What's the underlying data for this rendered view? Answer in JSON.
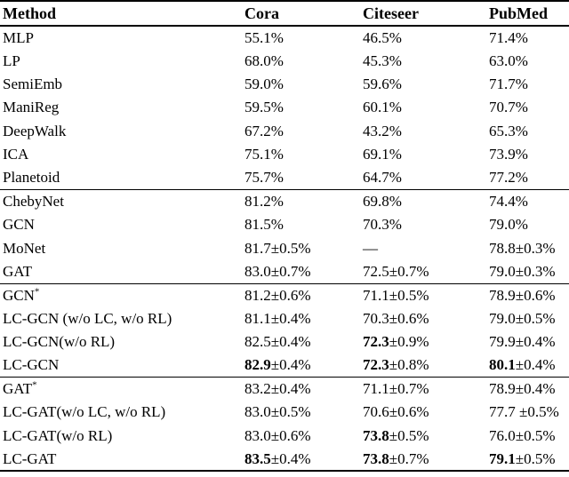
{
  "table": {
    "columns": [
      "Method",
      "Cora",
      "Citeseer",
      "PubMed"
    ],
    "sections": [
      {
        "rows": [
          {
            "method": "MLP",
            "values": [
              "55.1%",
              "46.5%",
              "71.4%"
            ]
          },
          {
            "method": "LP",
            "values": [
              "68.0%",
              "45.3%",
              "63.0%"
            ]
          },
          {
            "method": "SemiEmb",
            "values": [
              "59.0%",
              "59.6%",
              "71.7%"
            ]
          },
          {
            "method": "ManiReg",
            "values": [
              "59.5%",
              "60.1%",
              "70.7%"
            ]
          },
          {
            "method": "DeepWalk",
            "values": [
              "67.2%",
              "43.2%",
              "65.3%"
            ]
          },
          {
            "method": "ICA",
            "values": [
              "75.1%",
              "69.1%",
              "73.9%"
            ]
          },
          {
            "method": "Planetoid",
            "values": [
              "75.7%",
              "64.7%",
              "77.2%"
            ]
          }
        ]
      },
      {
        "rows": [
          {
            "method": "ChebyNet",
            "values": [
              "81.2%",
              "69.8%",
              "74.4%"
            ]
          },
          {
            "method": "GCN",
            "values": [
              "81.5%",
              "70.3%",
              "79.0%"
            ]
          },
          {
            "method": "MoNet",
            "values": [
              "81.7±0.5%",
              "—",
              "78.8±0.3%"
            ]
          },
          {
            "method": "GAT",
            "values": [
              "83.0±0.7%",
              "72.5±0.7%",
              "79.0±0.3%"
            ]
          }
        ]
      },
      {
        "rows": [
          {
            "method": "GCN*",
            "values": [
              "81.2±0.6%",
              "71.1±0.5%",
              "78.9±0.6%"
            ]
          },
          {
            "method": "LC-GCN (w/o LC, w/o RL)",
            "values": [
              "81.1±0.4%",
              "70.3±0.6%",
              "79.0±0.5%"
            ]
          },
          {
            "method": "LC-GCN(w/o RL)",
            "values": [
              "82.5±0.4%",
              {
                "bold": "72.3",
                "rest": "±0.9%"
              },
              "79.9±0.4%"
            ]
          },
          {
            "method": "LC-GCN",
            "values": [
              {
                "bold": "82.9",
                "rest": "±0.4%"
              },
              {
                "bold": "72.3",
                "rest": "±0.8%"
              },
              {
                "bold": "80.1",
                "rest": "±0.4%"
              }
            ]
          }
        ]
      },
      {
        "rows": [
          {
            "method": "GAT*",
            "values": [
              "83.2±0.4%",
              "71.1±0.7%",
              "78.9±0.4%"
            ]
          },
          {
            "method": "LC-GAT(w/o LC, w/o RL)",
            "values": [
              "83.0±0.5%",
              "70.6±0.6%",
              "77.7 ±0.5%"
            ]
          },
          {
            "method": "LC-GAT(w/o RL)",
            "values": [
              "83.0±0.6%",
              {
                "bold": "73.8",
                "rest": "±0.5%"
              },
              "76.0±0.5%"
            ]
          },
          {
            "method": "LC-GAT",
            "values": [
              {
                "bold": "83.5",
                "rest": "±0.4%"
              },
              {
                "bold": "73.8",
                "rest": "±0.7%"
              },
              {
                "bold": "79.1",
                "rest": "±0.5%"
              }
            ]
          }
        ]
      }
    ]
  }
}
